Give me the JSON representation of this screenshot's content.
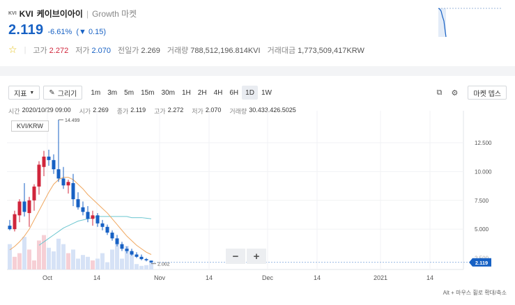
{
  "header": {
    "logo_text": "KVI",
    "symbol": "KVI",
    "name": "케이브이아이",
    "separator": "|",
    "market": "Growth 마켓",
    "price": "2.119",
    "change_pct": "-6.61%",
    "change_abs": "0.15",
    "change_dir": "down"
  },
  "stats": [
    {
      "label": "고가",
      "value": "2.272",
      "tone": "up"
    },
    {
      "label": "저가",
      "value": "2.070",
      "tone": "down"
    },
    {
      "label": "전일가",
      "value": "2.269",
      "tone": "none"
    },
    {
      "label": "거래량",
      "value": "788,512,196.814KVI",
      "tone": "none"
    },
    {
      "label": "거래대금",
      "value": "1,773,509,417KRW",
      "tone": "none"
    }
  ],
  "toolbar": {
    "indicator_label": "지표",
    "draw_label": "그리기",
    "timeframes": [
      "1m",
      "3m",
      "5m",
      "15m",
      "30m",
      "1H",
      "2H",
      "4H",
      "6H",
      "1D",
      "1W"
    ],
    "selected_timeframe": "1D",
    "market_depth_label": "마켓 뎁스"
  },
  "ohlc": [
    {
      "k": "시간",
      "v": "2020/10/29 09:00"
    },
    {
      "k": "시가",
      "v": "2.269"
    },
    {
      "k": "종가",
      "v": "2.119"
    },
    {
      "k": "고가",
      "v": "2.272"
    },
    {
      "k": "저가",
      "v": "2.070"
    },
    {
      "k": "거래량",
      "v": "30.433.426.5025"
    }
  ],
  "symbol_tag": "KVI/KRW",
  "zoom": {
    "minus": "−",
    "plus": "+"
  },
  "hint": "Alt + 마우스 휠로 확대/축소",
  "colors": {
    "up": "#d0253b",
    "down": "#1761c4",
    "ma_short": "#f0a860",
    "ma_long": "#6cc6d0"
  },
  "chart_data": {
    "type": "candlestick",
    "y_ticks": [
      "12.500",
      "10.000",
      "7.500",
      "5.000",
      "2.500"
    ],
    "x_ticks": [
      "Oct",
      "14",
      "Nov",
      "14",
      "Dec",
      "14",
      "2021",
      "14"
    ],
    "max_label": "14.499",
    "min_label": "2.002",
    "last_price_label": "2.119",
    "ylim": [
      1.5,
      14.8
    ],
    "candles": [
      {
        "o": 5.3,
        "h": 5.8,
        "l": 4.9,
        "c": 5.0
      },
      {
        "o": 5.0,
        "h": 6.6,
        "l": 4.8,
        "c": 6.3
      },
      {
        "o": 6.2,
        "h": 7.6,
        "l": 5.6,
        "c": 7.4
      },
      {
        "o": 7.4,
        "h": 9.0,
        "l": 6.1,
        "c": 6.5
      },
      {
        "o": 6.4,
        "h": 7.8,
        "l": 5.2,
        "c": 7.5
      },
      {
        "o": 7.5,
        "h": 8.9,
        "l": 6.6,
        "c": 8.7
      },
      {
        "o": 8.7,
        "h": 10.9,
        "l": 8.0,
        "c": 10.6
      },
      {
        "o": 10.4,
        "h": 11.8,
        "l": 9.6,
        "c": 11.3
      },
      {
        "o": 11.3,
        "h": 11.9,
        "l": 10.5,
        "c": 11.0
      },
      {
        "o": 11.0,
        "h": 11.5,
        "l": 9.8,
        "c": 10.2
      },
      {
        "o": 10.2,
        "h": 14.5,
        "l": 9.1,
        "c": 9.4
      },
      {
        "o": 9.4,
        "h": 10.4,
        "l": 8.5,
        "c": 8.8
      },
      {
        "o": 8.8,
        "h": 9.3,
        "l": 8.1,
        "c": 9.1
      },
      {
        "o": 9.0,
        "h": 9.8,
        "l": 7.0,
        "c": 7.6
      },
      {
        "o": 7.6,
        "h": 8.2,
        "l": 6.7,
        "c": 6.9
      },
      {
        "o": 6.9,
        "h": 7.4,
        "l": 6.2,
        "c": 6.5
      },
      {
        "o": 6.5,
        "h": 7.0,
        "l": 5.6,
        "c": 5.9
      },
      {
        "o": 5.9,
        "h": 6.6,
        "l": 5.3,
        "c": 6.2
      },
      {
        "o": 6.2,
        "h": 6.4,
        "l": 5.2,
        "c": 5.5
      },
      {
        "o": 5.5,
        "h": 5.8,
        "l": 4.9,
        "c": 5.2
      },
      {
        "o": 5.2,
        "h": 5.4,
        "l": 4.5,
        "c": 4.7
      },
      {
        "o": 4.7,
        "h": 4.9,
        "l": 4.0,
        "c": 4.2
      },
      {
        "o": 4.2,
        "h": 4.5,
        "l": 3.5,
        "c": 3.7
      },
      {
        "o": 3.7,
        "h": 3.9,
        "l": 3.1,
        "c": 3.3
      },
      {
        "o": 3.3,
        "h": 3.5,
        "l": 2.9,
        "c": 3.1
      },
      {
        "o": 3.1,
        "h": 3.3,
        "l": 2.7,
        "c": 2.8
      },
      {
        "o": 2.8,
        "h": 3.0,
        "l": 2.5,
        "c": 2.6
      },
      {
        "o": 2.6,
        "h": 2.8,
        "l": 2.3,
        "c": 2.4
      },
      {
        "o": 2.4,
        "h": 2.5,
        "l": 2.2,
        "c": 2.3
      },
      {
        "o": 2.269,
        "h": 2.272,
        "l": 2.07,
        "c": 2.119
      }
    ],
    "volumes": [
      0.7,
      0.35,
      0.45,
      0.9,
      0.55,
      0.25,
      0.8,
      0.95,
      0.6,
      0.5,
      0.85,
      0.7,
      0.45,
      0.55,
      0.3,
      0.4,
      0.35,
      0.25,
      0.3,
      0.45,
      0.2,
      0.55,
      0.7,
      0.3,
      0.65,
      0.5,
      0.15,
      0.1,
      0.12,
      0.2
    ],
    "ma_short": [
      3.2,
      3.5,
      3.9,
      4.4,
      5.0,
      5.8,
      6.6,
      7.4,
      8.2,
      8.9,
      9.3,
      9.5,
      9.5,
      9.3,
      8.9,
      8.5,
      8.0,
      7.6,
      7.2,
      6.8,
      6.4,
      5.9,
      5.4,
      4.9,
      4.4,
      4.0,
      3.6,
      3.3,
      3.0,
      2.8
    ],
    "ma_long": [
      null,
      null,
      null,
      null,
      null,
      null,
      3.6,
      3.9,
      4.2,
      4.5,
      4.8,
      5.1,
      5.3,
      5.5,
      5.7,
      5.8,
      5.9,
      6.0,
      6.1,
      6.1,
      6.1,
      6.1,
      6.1,
      6.1,
      6.1,
      6.0,
      6.0,
      6.0,
      5.95,
      5.9
    ]
  }
}
